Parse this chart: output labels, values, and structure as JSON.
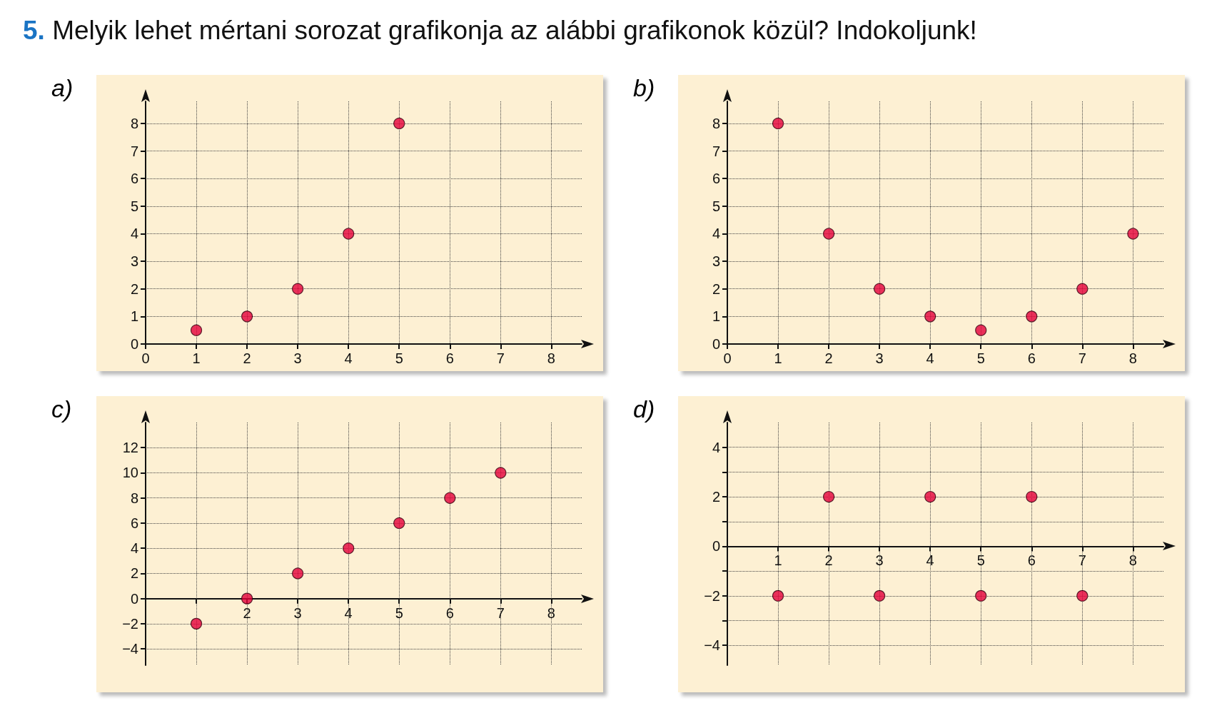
{
  "chart_data": [
    {
      "type": "scatter",
      "title": "a)",
      "annotations": [
        "5. Melyik lehet mértani sorozat grafikonja az alábbi grafikonok közül? Indokoljunk!"
      ],
      "x": [
        1,
        2,
        3,
        4,
        5
      ],
      "values": [
        0.5,
        1,
        2,
        4,
        8
      ],
      "color": "#e4003b",
      "marker": "circle",
      "grid": true,
      "xlim": [
        0,
        8.6
      ],
      "ylim": [
        0,
        8.8
      ],
      "xticks": [
        0,
        1,
        2,
        3,
        4,
        5,
        6,
        7,
        8
      ],
      "yticks": [
        0,
        1,
        2,
        3,
        4,
        5,
        6,
        7,
        8
      ]
    },
    {
      "type": "scatter",
      "title": "b)",
      "x": [
        1,
        2,
        3,
        4,
        5,
        6,
        7,
        8
      ],
      "values": [
        8,
        4,
        2,
        1,
        0.5,
        1,
        2,
        4
      ],
      "color": "#e4003b",
      "marker": "circle",
      "grid": true,
      "xlim": [
        0,
        8.6
      ],
      "ylim": [
        0,
        8.8
      ],
      "xticks": [
        0,
        1,
        2,
        3,
        4,
        5,
        6,
        7,
        8
      ],
      "yticks": [
        0,
        1,
        2,
        3,
        4,
        5,
        6,
        7,
        8
      ]
    },
    {
      "type": "scatter",
      "title": "c)",
      "x": [
        1,
        2,
        3,
        4,
        5,
        6,
        7
      ],
      "values": [
        -2,
        0,
        2,
        4,
        6,
        8,
        10
      ],
      "color": "#e4003b",
      "marker": "circle",
      "grid": true,
      "xlim": [
        0,
        8.6
      ],
      "ylim": [
        -5.3,
        14
      ],
      "xticks": [
        {
          "value": 1,
          "label": null
        },
        2,
        3,
        4,
        5,
        6,
        7,
        8
      ],
      "yticks": [
        {
          "value": -4,
          "label": "−4"
        },
        {
          "value": -2,
          "label": "−2"
        },
        0,
        2,
        4,
        6,
        8,
        10,
        12
      ]
    },
    {
      "type": "scatter",
      "title": "d)",
      "x": [
        1,
        2,
        3,
        4,
        5,
        6,
        7
      ],
      "values": [
        -2,
        2,
        -2,
        2,
        -2,
        2,
        -2
      ],
      "color": "#e4003b",
      "marker": "circle",
      "grid": true,
      "xlim": [
        0,
        8.6
      ],
      "ylim": [
        -4.8,
        5
      ],
      "xticks": [
        1,
        2,
        3,
        4,
        5,
        6,
        7,
        8
      ],
      "yticks": [
        {
          "value": -4,
          "label": "−4"
        },
        {
          "value": -3,
          "label": null
        },
        {
          "value": -2,
          "label": "−2"
        },
        {
          "value": -1,
          "label": null
        },
        0,
        {
          "value": 1,
          "label": null
        },
        2,
        {
          "value": 3,
          "label": null
        },
        4
      ]
    }
  ]
}
